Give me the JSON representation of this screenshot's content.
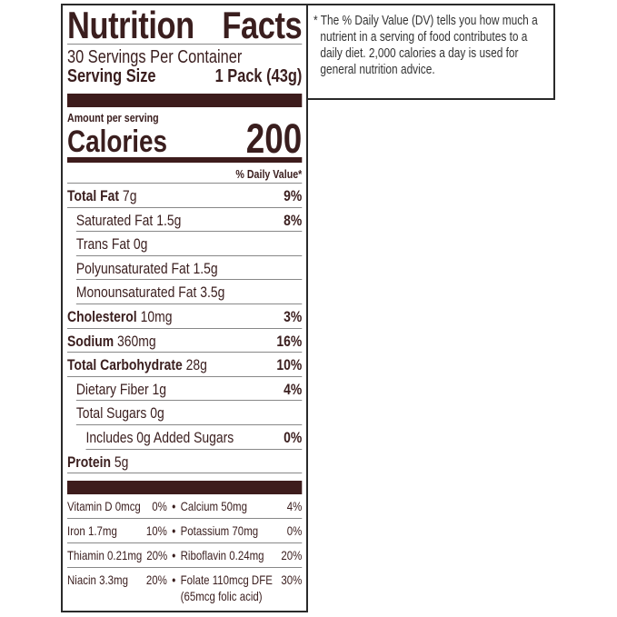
{
  "title": [
    "Nutrition",
    "Facts"
  ],
  "servings_per_container": "30 Servings Per Container",
  "serving_size": {
    "label": "Serving Size",
    "value": "1 Pack (43g)"
  },
  "amount_per_serving": "Amount per serving",
  "calories": {
    "label": "Calories",
    "value": "200"
  },
  "dv_header": "% Daily Value*",
  "nutrients": [
    {
      "name": "Total Fat",
      "amount": "7g",
      "dv": "9%",
      "bold": true,
      "indent": 0
    },
    {
      "name": "Saturated Fat",
      "amount": "1.5g",
      "dv": "8%",
      "bold": false,
      "indent": 1
    },
    {
      "name": "Trans Fat",
      "amount": "0g",
      "dv": "",
      "bold": false,
      "indent": 1
    },
    {
      "name": "Polyunsaturated Fat",
      "amount": "1.5g",
      "dv": "",
      "bold": false,
      "indent": 1
    },
    {
      "name": "Monounsaturated Fat",
      "amount": "3.5g",
      "dv": "",
      "bold": false,
      "indent": 1
    },
    {
      "name": "Cholesterol",
      "amount": "10mg",
      "dv": "3%",
      "bold": true,
      "indent": 0
    },
    {
      "name": "Sodium",
      "amount": "360mg",
      "dv": "16%",
      "bold": true,
      "indent": 0
    },
    {
      "name": "Total Carbohydrate",
      "amount": "28g",
      "dv": "10%",
      "bold": true,
      "indent": 0
    },
    {
      "name": "Dietary Fiber",
      "amount": "1g",
      "dv": "4%",
      "bold": false,
      "indent": 1
    },
    {
      "name": "Total Sugars",
      "amount": "0g",
      "dv": "",
      "bold": false,
      "indent": 1
    },
    {
      "name": "Includes 0g Added Sugars",
      "amount": "",
      "dv": "0%",
      "bold": false,
      "indent": 2
    },
    {
      "name": "Protein",
      "amount": "5g",
      "dv": "",
      "bold": true,
      "indent": 0
    }
  ],
  "vitamins": [
    [
      {
        "name": "Vitamin D 0mcg",
        "dv": "0%"
      },
      {
        "name": "Calcium 50mg",
        "dv": "4%"
      }
    ],
    [
      {
        "name": "Iron 1.7mg",
        "dv": "10%"
      },
      {
        "name": "Potassium 70mg",
        "dv": "0%"
      }
    ],
    [
      {
        "name": "Thiamin 0.21mg",
        "dv": "20%"
      },
      {
        "name": "Riboflavin 0.24mg",
        "dv": "20%"
      }
    ],
    [
      {
        "name": "Niacin 3.3mg",
        "dv": "20%"
      },
      {
        "name": "Folate 110mcg DFE",
        "dv": "30%",
        "sub": "(65mcg folic acid)"
      }
    ]
  ],
  "footnote": "* The % Daily Value (DV) tells you how much a nutrient in a serving of food contributes to a daily diet. 2,000 calories a day is used for general nutrition advice.",
  "colors": {
    "text": "#3a1e1e",
    "bars": "#3d1c1c",
    "border": "#2a2a2a"
  }
}
